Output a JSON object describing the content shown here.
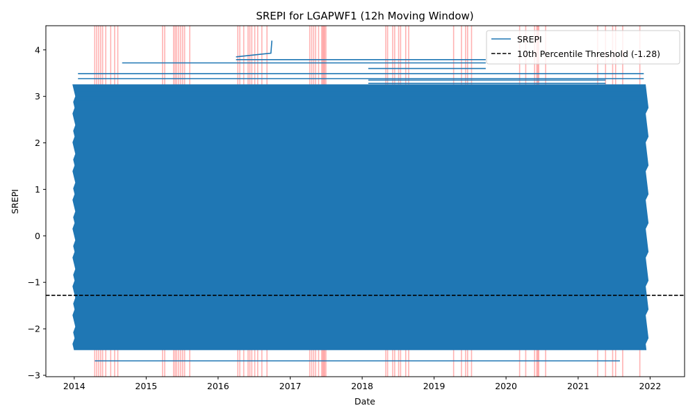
{
  "chart_data": {
    "type": "line",
    "title": "SREPI for LGAPWF1 (12h Moving Window)",
    "xlabel": "Date",
    "ylabel": "SREPI",
    "xlim": [
      "2013-08-10",
      "2022-06-25"
    ],
    "ylim": [
      -3.03,
      4.52
    ],
    "x_ticks": [
      "2014",
      "2015",
      "2016",
      "2017",
      "2018",
      "2019",
      "2020",
      "2021",
      "2022"
    ],
    "y_ticks": [
      -3,
      -2,
      -1,
      0,
      1,
      2,
      3,
      4
    ],
    "y_tick_labels": [
      "−3",
      "−2",
      "−1",
      "0",
      "1",
      "2",
      "3",
      "4"
    ],
    "grid": false,
    "legend_position": "top-right",
    "series": [
      {
        "name": "SREPI",
        "color": "#1f77b4",
        "style": "solid",
        "dense_band": {
          "x_range": [
            "2014-01-01",
            "2021-12-15"
          ],
          "main_range": [
            -2.45,
            3.25
          ],
          "lower_plateaus": [
            {
              "x": [
                "2014-04-15",
                "2021-08-01"
              ],
              "y": -2.69
            }
          ],
          "upper_plateaus": [
            {
              "x": [
                "2014-01-20",
                "2021-11-30"
              ],
              "y": 3.49
            },
            {
              "x": [
                "2014-01-20",
                "2021-11-30"
              ],
              "y": 3.38
            },
            {
              "x": [
                "2014-01-20",
                "2021-11-30"
              ],
              "y": 3.2
            },
            {
              "x": [
                "2014-01-20",
                "2021-11-30"
              ],
              "y": 3.1
            },
            {
              "x": [
                "2014-01-20",
                "2021-11-30"
              ],
              "y": 3.02
            },
            {
              "x": [
                "2014-01-20",
                "2021-11-30"
              ],
              "y": 2.93
            },
            {
              "x": [
                "2014-09-01",
                "2019-09-20"
              ],
              "y": 3.72
            },
            {
              "x": [
                "2016-04-01",
                "2019-09-20"
              ],
              "y": 3.79
            },
            {
              "x": [
                "2018-02-01",
                "2019-09-20"
              ],
              "y": 3.6
            },
            {
              "x": [
                "2018-02-01",
                "2021-05-20"
              ],
              "y": 3.35
            },
            {
              "x": [
                "2018-02-01",
                "2021-05-20"
              ],
              "y": 3.28
            }
          ],
          "spike": {
            "x": [
              "2016-04-01",
              "2016-09-25",
              "2016-09-30"
            ],
            "y": [
              3.85,
              3.93,
              4.2
            ]
          }
        }
      },
      {
        "name": "10th Percentile Threshold (-1.28)",
        "color": "#000000",
        "style": "dashed",
        "y": -1.28
      }
    ],
    "shaded_events": {
      "color": "#ff0000",
      "dates": [
        "2014-04-15",
        "2014-04-25",
        "2014-05-05",
        "2014-05-15",
        "2014-05-25",
        "2014-06-10",
        "2014-07-05",
        "2014-07-25",
        "2014-08-10",
        "2015-03-25",
        "2015-04-05",
        "2015-05-20",
        "2015-05-28",
        "2015-06-05",
        "2015-06-15",
        "2015-06-25",
        "2015-07-05",
        "2015-07-15",
        "2015-08-10",
        "2016-04-10",
        "2016-04-20",
        "2016-05-10",
        "2016-06-01",
        "2016-06-10",
        "2016-06-20",
        "2016-07-05",
        "2016-07-20",
        "2016-08-10",
        "2016-09-05",
        "2017-04-10",
        "2017-04-20",
        "2017-04-30",
        "2017-05-10",
        "2017-05-25",
        "2017-06-10",
        "2017-06-15",
        "2017-06-20",
        "2017-06-25",
        "2017-07-01",
        "2018-05-01",
        "2018-05-10",
        "2018-06-05",
        "2018-06-15",
        "2018-07-05",
        "2018-07-15",
        "2018-08-10",
        "2018-08-25",
        "2019-04-10",
        "2019-05-20",
        "2019-06-10",
        "2019-06-20",
        "2019-07-10",
        "2020-03-10",
        "2020-04-10",
        "2020-05-25",
        "2020-06-05",
        "2020-06-10",
        "2020-06-15",
        "2020-07-20",
        "2021-04-10",
        "2021-05-20",
        "2021-06-25",
        "2021-07-10",
        "2021-08-15",
        "2021-11-10"
      ]
    }
  }
}
